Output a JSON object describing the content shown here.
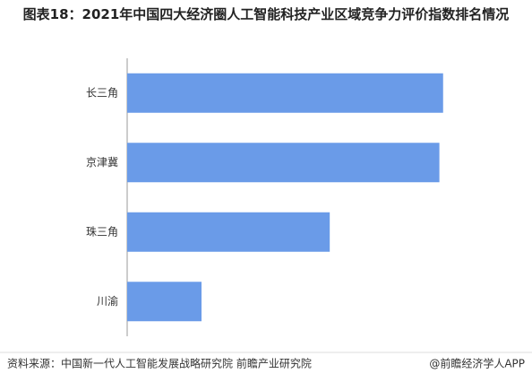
{
  "chart_data": {
    "type": "hbar",
    "title": "图表18：2021年中国四大经济圈人工智能科技产业区域竞争力评价指数排名情况",
    "categories": [
      "长三角",
      "京津冀",
      "珠三角",
      "川渝"
    ],
    "values": [
      85,
      84,
      54.5,
      20
    ],
    "color": "#6a9be8",
    "xlim": [
      0,
      100
    ],
    "source": "资料来源：中国新一代人工智能发展战略研究院 前瞻产业研究院",
    "credit": "@前瞻经济学人APP"
  }
}
